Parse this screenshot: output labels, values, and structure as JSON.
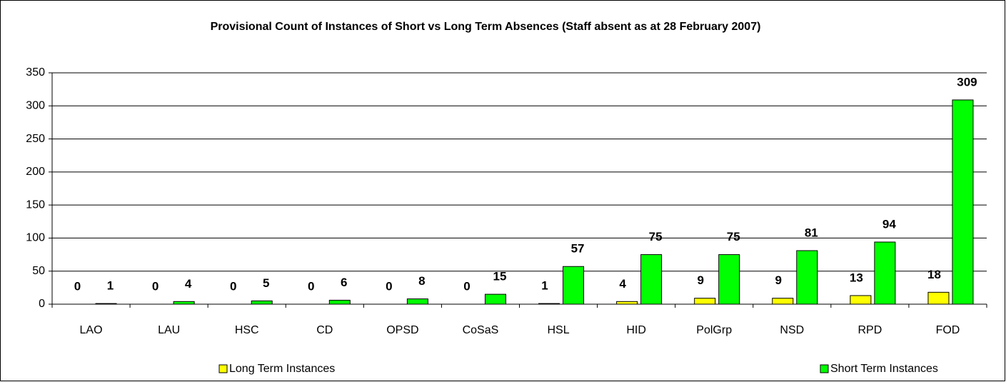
{
  "chart_data": {
    "type": "bar",
    "title": "Provisional Count of Instances of Short vs Long Term Absences (Staff absent as at 28 February 2007)",
    "categories": [
      "LAO",
      "LAU",
      "HSC",
      "CD",
      "OPSD",
      "CoSaS",
      "HSL",
      "HID",
      "PolGrp",
      "NSD",
      "RPD",
      "FOD"
    ],
    "series": [
      {
        "name": "Long Term Instances",
        "color": "#ffff00",
        "values": [
          0,
          0,
          0,
          0,
          0,
          0,
          1,
          4,
          9,
          9,
          13,
          18
        ]
      },
      {
        "name": "Short Term Instances",
        "color": "#00ff00",
        "values": [
          1,
          4,
          5,
          6,
          8,
          15,
          57,
          75,
          75,
          81,
          94,
          309
        ]
      }
    ],
    "ylim": [
      0,
      350
    ],
    "yticks": [
      0,
      50,
      100,
      150,
      200,
      250,
      300,
      350
    ],
    "grid": true,
    "legend": "bottom"
  }
}
